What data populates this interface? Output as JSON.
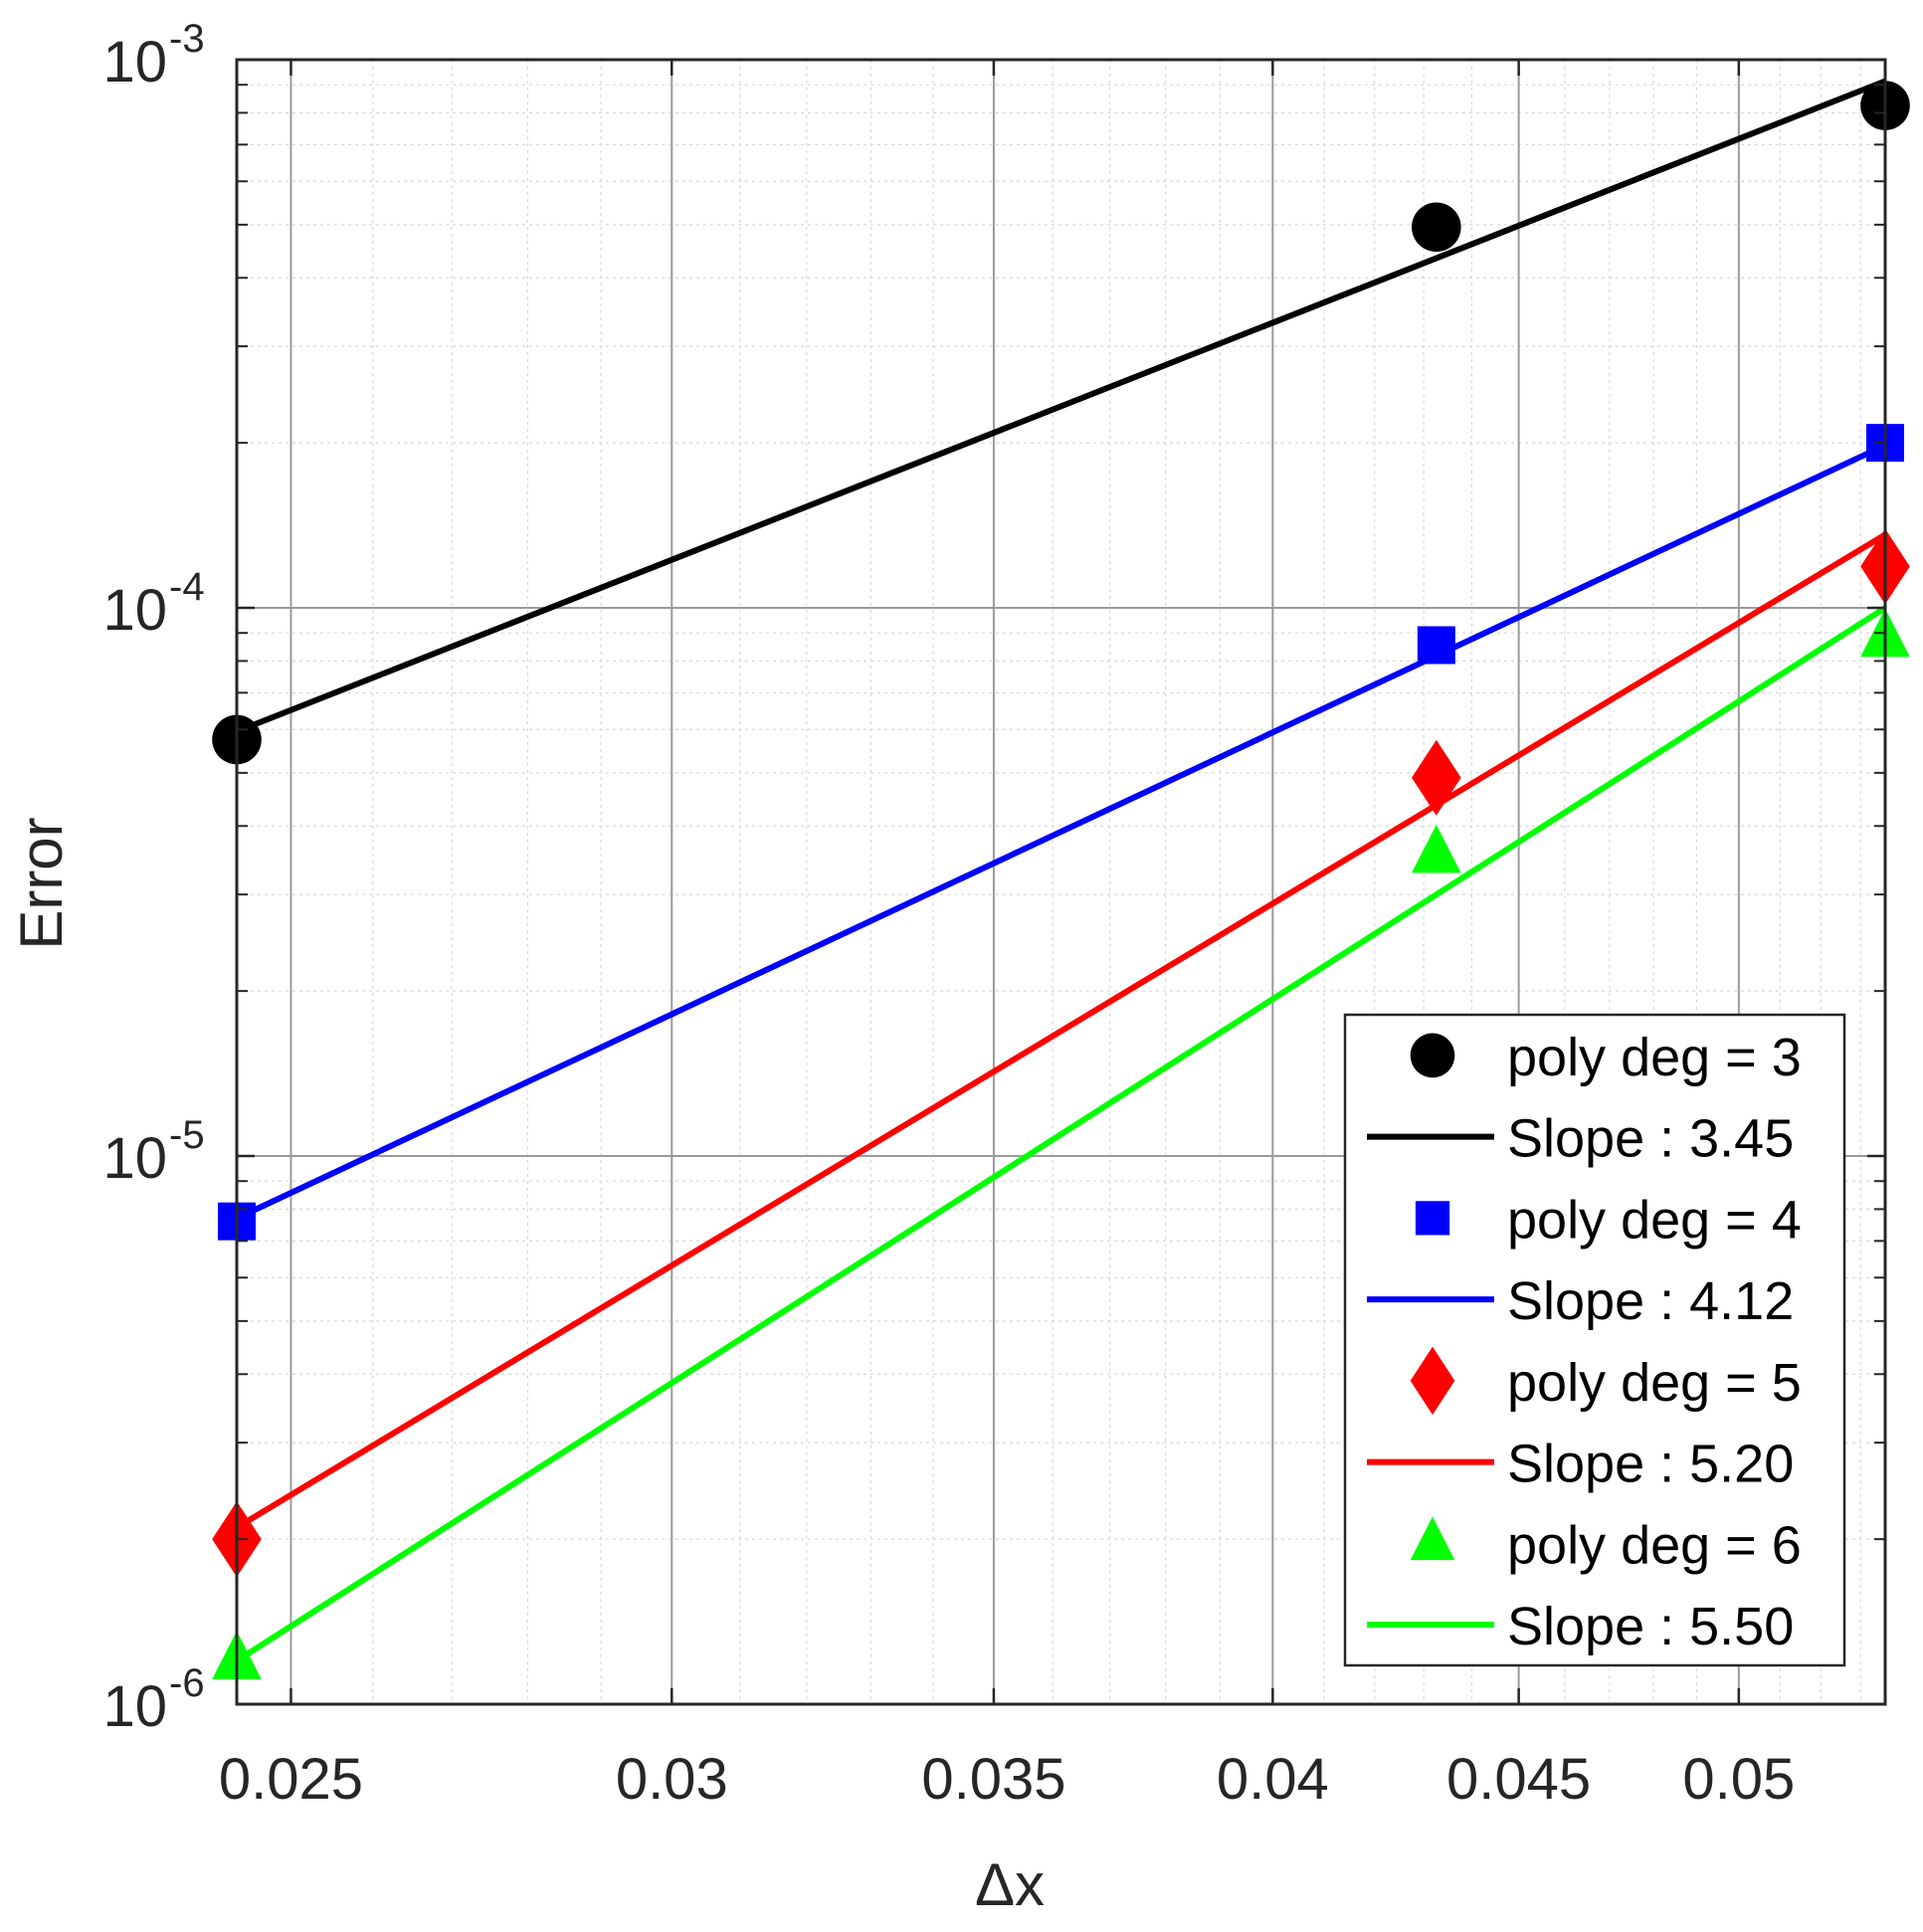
{
  "chart_data": {
    "type": "scatter",
    "xscale": "log",
    "yscale": "log",
    "xlim": [
      0.02436,
      0.05363
    ],
    "ylim": [
      1e-06,
      0.001
    ],
    "xlabel": "Δx",
    "ylabel": "Error",
    "grid": true,
    "minor_grid": true,
    "legend_position": "bottom-right",
    "x_ticks": [
      {
        "value": 0.025,
        "label": "0.025"
      },
      {
        "value": 0.03,
        "label": "0.03"
      },
      {
        "value": 0.035,
        "label": "0.035"
      },
      {
        "value": 0.04,
        "label": "0.04"
      },
      {
        "value": 0.045,
        "label": "0.045"
      },
      {
        "value": 0.05,
        "label": "0.05"
      }
    ],
    "y_ticks": [
      {
        "value": 1e-06,
        "base": "10",
        "exp": "-6"
      },
      {
        "value": 1e-05,
        "base": "10",
        "exp": "-5"
      },
      {
        "value": 0.0001,
        "base": "10",
        "exp": "-4"
      },
      {
        "value": 0.001,
        "base": "10",
        "exp": "-3"
      }
    ],
    "series": [
      {
        "name": "poly deg = 3",
        "kind": "markers",
        "marker": "circle",
        "color": "#000000",
        "x": [
          0.02436,
          0.04326,
          0.05363
        ],
        "y": [
          5.75e-05,
          0.000495,
          0.000825
        ]
      },
      {
        "name": "Slope : 3.45",
        "kind": "line",
        "color": "#000000",
        "x": [
          0.02436,
          0.05363
        ],
        "y": [
          5.95e-05,
          0.000914
        ]
      },
      {
        "name": "poly deg = 4",
        "kind": "markers",
        "marker": "square",
        "color": "#0000ff",
        "x": [
          0.02436,
          0.04326,
          0.05363
        ],
        "y": [
          7.6e-06,
          8.55e-05,
          0.0002
        ]
      },
      {
        "name": "Slope : 4.12",
        "kind": "line",
        "color": "#0000ff",
        "x": [
          0.02436,
          0.05363
        ],
        "y": [
          7.7e-06,
          0.000198
        ]
      },
      {
        "name": "poly deg = 5",
        "kind": "markers",
        "marker": "diamond",
        "color": "#ff0000",
        "x": [
          0.02436,
          0.04326,
          0.05363
        ],
        "y": [
          2e-06,
          4.9e-05,
          0.000119
        ]
      },
      {
        "name": "Slope : 5.20",
        "kind": "line",
        "color": "#ff0000",
        "x": [
          0.02436,
          0.05363
        ],
        "y": [
          2.1e-06,
          0.000136
        ]
      },
      {
        "name": "poly deg = 6",
        "kind": "markers",
        "marker": "triangle",
        "color": "#00ff00",
        "x": [
          0.02436,
          0.04326,
          0.05363
        ],
        "y": [
          1.2e-06,
          3.55e-05,
          8.8e-05
        ]
      },
      {
        "name": "Slope : 5.50",
        "kind": "line",
        "color": "#00ff00",
        "x": [
          0.02436,
          0.05363
        ],
        "y": [
          1.2e-06,
          0.0001
        ]
      }
    ]
  }
}
